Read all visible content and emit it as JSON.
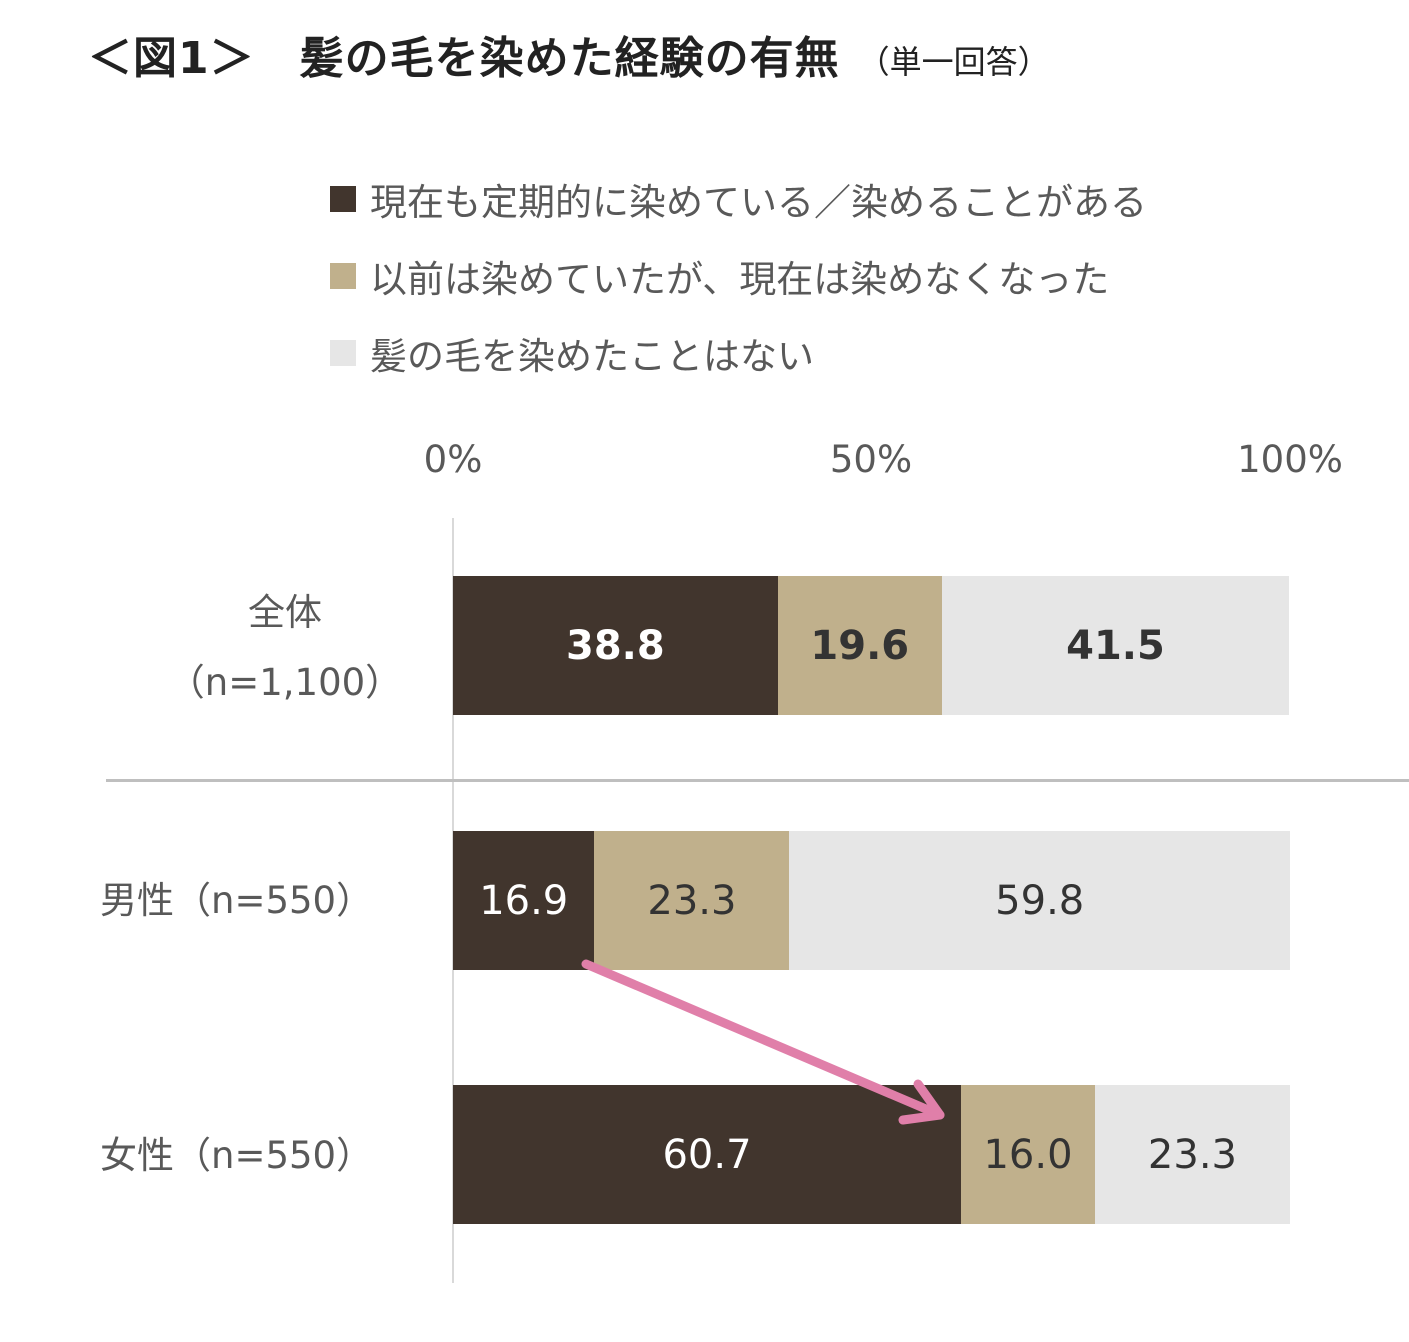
{
  "chart_data": {
    "type": "bar",
    "orientation": "horizontal",
    "stacked": true,
    "title": "＜図1＞　髪の毛を染めた経験の有無",
    "subtitle": "（単一回答）",
    "xlim": [
      0,
      100
    ],
    "xticks": [
      "0%",
      "50%",
      "100%"
    ],
    "legend": "top",
    "categories": [
      [
        "全体",
        "（n=1,100）"
      ],
      [
        "男性（n=550）"
      ],
      [
        "女性（n=550）"
      ]
    ],
    "series": [
      {
        "name": "現在も定期的に染めている／染めることがある",
        "color": "#41352d",
        "text_color": "#ffffff",
        "values": [
          38.8,
          16.9,
          60.7
        ],
        "labels": [
          "38.8",
          "16.9",
          "60.7"
        ]
      },
      {
        "name": "以前は染めていたが、現在は染めなくなった",
        "color": "#c0b08c",
        "text_color": "#333333",
        "values": [
          19.6,
          23.3,
          16.0
        ],
        "labels": [
          "19.6",
          "23.3",
          "16.0"
        ]
      },
      {
        "name": "髪の毛を染めたことはない",
        "color": "#e6e6e6",
        "text_color": "#333333",
        "values": [
          41.5,
          59.8,
          23.3
        ],
        "labels": [
          "41.5",
          "59.8",
          "23.3"
        ]
      }
    ],
    "bold_rows": [
      true,
      false,
      false
    ],
    "annotation_color": "#e07fa9"
  }
}
